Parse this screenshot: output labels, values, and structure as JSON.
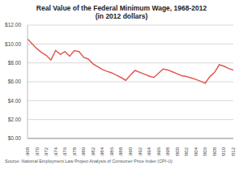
{
  "chart_data": {
    "type": "line",
    "title": "Real Value of the Federal Minimum Wage, 1968-2012",
    "subtitle": "(in 2012 dollars)",
    "annotations": [
      "Source: National Employment Law Project Analysis of Consumer Price Index (CPI-U)"
    ],
    "x": [
      1968,
      1969,
      1970,
      1971,
      1972,
      1973,
      1974,
      1975,
      1976,
      1977,
      1978,
      1979,
      1980,
      1981,
      1982,
      1983,
      1984,
      1985,
      1986,
      1987,
      1988,
      1989,
      1990,
      1991,
      1992,
      1993,
      1994,
      1995,
      1996,
      1997,
      1998,
      1999,
      2000,
      2001,
      2002,
      2003,
      2004,
      2005,
      2006,
      2007,
      2008,
      2009,
      2010,
      2011,
      2012
    ],
    "values": [
      10.55,
      10.0,
      9.5,
      9.1,
      8.8,
      8.3,
      9.3,
      8.9,
      9.2,
      8.7,
      9.3,
      9.2,
      8.6,
      8.4,
      7.9,
      7.6,
      7.3,
      7.1,
      6.95,
      6.7,
      6.45,
      6.15,
      6.7,
      7.2,
      7.0,
      6.8,
      6.6,
      6.45,
      6.9,
      7.35,
      7.25,
      7.05,
      6.85,
      6.65,
      6.55,
      6.4,
      6.25,
      6.05,
      5.85,
      6.55,
      7.0,
      7.8,
      7.65,
      7.4,
      7.25
    ],
    "color": "#e15a4f",
    "xlim": [
      1968,
      2012
    ],
    "xticks": [
      1968,
      1970,
      1972,
      1974,
      1976,
      1978,
      1980,
      1982,
      1984,
      1986,
      1988,
      1990,
      1992,
      1994,
      1996,
      1998,
      2000,
      2002,
      2004,
      2006,
      2008,
      2010,
      2012
    ],
    "ylim": [
      0,
      12
    ],
    "yticks": [
      {
        "value": 0,
        "label": "$0.00"
      },
      {
        "value": 2,
        "label": "$2.00"
      },
      {
        "value": 4,
        "label": "$4.00"
      },
      {
        "value": 6,
        "label": "$6.00"
      },
      {
        "value": 8,
        "label": "$8.00"
      },
      {
        "value": 10,
        "label": "$10.00"
      },
      {
        "value": 12,
        "label": "$12.00"
      }
    ],
    "grid": true
  }
}
